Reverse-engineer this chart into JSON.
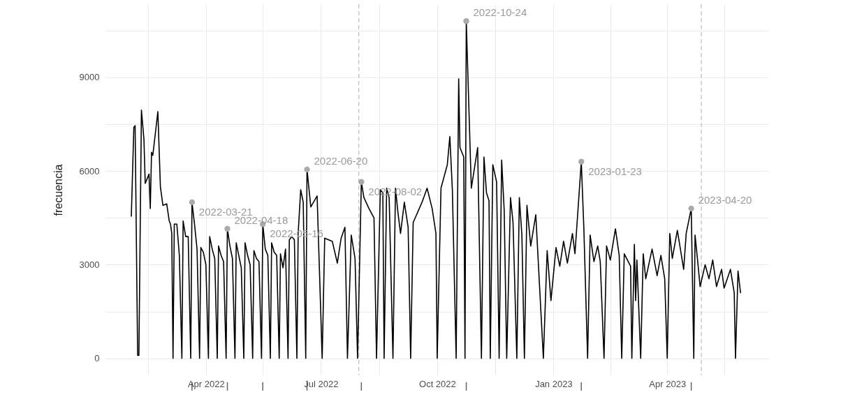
{
  "chart_data": {
    "type": "line",
    "ylabel": "frecuencia",
    "x": [
      "2022-02-01",
      "2022-02-03",
      "2022-02-04",
      "2022-02-06",
      "2022-02-07",
      "2022-02-09",
      "2022-02-11",
      "2022-02-12",
      "2022-02-14",
      "2022-02-15",
      "2022-02-16",
      "2022-02-17",
      "2022-02-18",
      "2022-02-22",
      "2022-02-24",
      "2022-02-26",
      "2022-03-01",
      "2022-03-03",
      "2022-03-04",
      "2022-03-05",
      "2022-03-06",
      "2022-03-07",
      "2022-03-09",
      "2022-03-11",
      "2022-03-13",
      "2022-03-14",
      "2022-03-16",
      "2022-03-18",
      "2022-03-20",
      "2022-03-21",
      "2022-03-23",
      "2022-03-25",
      "2022-03-27",
      "2022-03-28",
      "2022-03-30",
      "2022-04-01",
      "2022-04-03",
      "2022-04-04",
      "2022-04-06",
      "2022-04-08",
      "2022-04-10",
      "2022-04-11",
      "2022-04-13",
      "2022-04-15",
      "2022-04-17",
      "2022-04-18",
      "2022-04-20",
      "2022-04-22",
      "2022-04-24",
      "2022-04-25",
      "2022-04-27",
      "2022-04-29",
      "2022-05-01",
      "2022-05-02",
      "2022-05-04",
      "2022-05-06",
      "2022-05-08",
      "2022-05-09",
      "2022-05-11",
      "2022-05-13",
      "2022-05-15",
      "2022-05-16",
      "2022-05-18",
      "2022-05-20",
      "2022-05-22",
      "2022-05-23",
      "2022-05-25",
      "2022-05-27",
      "2022-05-29",
      "2022-05-30",
      "2022-06-01",
      "2022-06-03",
      "2022-06-05",
      "2022-06-06",
      "2022-06-08",
      "2022-06-10",
      "2022-06-12",
      "2022-06-13",
      "2022-06-15",
      "2022-06-17",
      "2022-06-19",
      "2022-06-20",
      "2022-06-23",
      "2022-06-28",
      "2022-07-02",
      "2022-07-04",
      "2022-07-10",
      "2022-07-14",
      "2022-07-17",
      "2022-07-20",
      "2022-07-22",
      "2022-07-25",
      "2022-07-28",
      "2022-07-30",
      "2022-08-02",
      "2022-08-04",
      "2022-08-08",
      "2022-08-12",
      "2022-08-14",
      "2022-08-17",
      "2022-08-19",
      "2022-08-20",
      "2022-08-22",
      "2022-08-24",
      "2022-08-27",
      "2022-08-29",
      "2022-08-31",
      "2022-09-02",
      "2022-09-05",
      "2022-09-08",
      "2022-09-10",
      "2022-09-12",
      "2022-09-19",
      "2022-09-23",
      "2022-09-27",
      "2022-09-30",
      "2022-10-01",
      "2022-10-04",
      "2022-10-09",
      "2022-10-11",
      "2022-10-13",
      "2022-10-16",
      "2022-10-18",
      "2022-10-19",
      "2022-10-22",
      "2022-10-23",
      "2022-10-24",
      "2022-10-28",
      "2022-11-02",
      "2022-11-05",
      "2022-11-07",
      "2022-11-09",
      "2022-11-11",
      "2022-11-12",
      "2022-11-14",
      "2022-11-17",
      "2022-11-19",
      "2022-11-21",
      "2022-11-23",
      "2022-11-25",
      "2022-11-28",
      "2022-11-30",
      "2022-12-03",
      "2022-12-05",
      "2022-12-07",
      "2022-12-09",
      "2022-12-11",
      "2022-12-14",
      "2022-12-18",
      "2022-12-24",
      "2022-12-27",
      "2022-12-30",
      "2023-01-03",
      "2023-01-06",
      "2023-01-09",
      "2023-01-12",
      "2023-01-16",
      "2023-01-18",
      "2023-01-23",
      "2023-01-25",
      "2023-01-28",
      "2023-01-30",
      "2023-02-02",
      "2023-02-05",
      "2023-02-07",
      "2023-02-10",
      "2023-02-12",
      "2023-02-15",
      "2023-02-19",
      "2023-02-22",
      "2023-02-24",
      "2023-02-26",
      "2023-03-03",
      "2023-03-04",
      "2023-03-06",
      "2023-03-07",
      "2023-03-08",
      "2023-03-11",
      "2023-03-13",
      "2023-03-15",
      "2023-03-20",
      "2023-03-24",
      "2023-03-27",
      "2023-03-30",
      "2023-04-01",
      "2023-04-03",
      "2023-04-05",
      "2023-04-09",
      "2023-04-14",
      "2023-04-16",
      "2023-04-20",
      "2023-04-22",
      "2023-04-23",
      "2023-04-25",
      "2023-04-27",
      "2023-05-01",
      "2023-05-04",
      "2023-05-07",
      "2023-05-10",
      "2023-05-14",
      "2023-05-16",
      "2023-05-21",
      "2023-05-24",
      "2023-05-25",
      "2023-05-27",
      "2023-05-29"
    ],
    "series": [
      {
        "color": "#000000",
        "values": [
          4550,
          7400,
          7450,
          100,
          100,
          7950,
          7000,
          5600,
          5800,
          5900,
          4800,
          6600,
          6500,
          7900,
          5500,
          4900,
          4950,
          4400,
          4300,
          4000,
          0,
          4300,
          4300,
          3300,
          0,
          4400,
          3900,
          3900,
          0,
          5000,
          4300,
          3500,
          0,
          3550,
          3400,
          3000,
          0,
          3900,
          3500,
          3200,
          0,
          3600,
          3300,
          3100,
          0,
          4150,
          3600,
          3200,
          0,
          3700,
          3300,
          2900,
          0,
          3700,
          3300,
          3000,
          0,
          3450,
          3200,
          3100,
          0,
          4300,
          3500,
          3300,
          0,
          3700,
          3400,
          3300,
          0,
          3350,
          2900,
          3500,
          0,
          3800,
          3900,
          3800,
          0,
          4000,
          5400,
          5000,
          0,
          6050,
          4850,
          5200,
          0,
          3850,
          3750,
          3050,
          3850,
          4200,
          0,
          3950,
          3200,
          0,
          5650,
          5150,
          4800,
          4500,
          0,
          5400,
          5300,
          0,
          5450,
          5150,
          0,
          5450,
          4650,
          4000,
          5000,
          4200,
          0,
          4350,
          5000,
          5450,
          4800,
          4000,
          0,
          5450,
          6200,
          7100,
          5400,
          0,
          8950,
          6750,
          6450,
          0,
          10800,
          5450,
          6750,
          0,
          6450,
          5300,
          5050,
          0,
          6200,
          5650,
          0,
          6350,
          4750,
          0,
          5150,
          4350,
          0,
          5150,
          3950,
          0,
          4900,
          3600,
          4600,
          0,
          3450,
          1850,
          3550,
          2950,
          3750,
          3050,
          4000,
          3350,
          6300,
          4200,
          0,
          3950,
          3100,
          3600,
          3100,
          0,
          3600,
          3150,
          4150,
          3300,
          0,
          3350,
          2950,
          0,
          3650,
          1850,
          3150,
          0,
          3350,
          2550,
          3500,
          2650,
          3300,
          2550,
          0,
          4000,
          3200,
          4100,
          2850,
          4000,
          4800,
          0,
          3950,
          3150,
          2300,
          3000,
          2550,
          3150,
          2300,
          2850,
          2250,
          2850,
          2100,
          0,
          2800,
          2100
        ]
      }
    ],
    "annotations": [
      {
        "text": "2022-03-21",
        "x": "2022-03-21",
        "y": 5000
      },
      {
        "text": "2022-04-18",
        "x": "2022-04-18",
        "y": 4150
      },
      {
        "text": "2022-05-16",
        "x": "2022-05-16",
        "y": 4300
      },
      {
        "text": "2022-06-20",
        "x": "2022-06-20",
        "y": 6050
      },
      {
        "text": "2022-08-02",
        "x": "2022-08-02",
        "y": 5650
      },
      {
        "text": "2022-10-24",
        "x": "2022-10-24",
        "y": 10800
      },
      {
        "text": "2023-01-23",
        "x": "2023-01-23",
        "y": 6300
      },
      {
        "text": "2023-04-20",
        "x": "2023-04-20",
        "y": 4800
      }
    ],
    "ref_lines": [
      {
        "axis": "x",
        "value": "2022-07-31",
        "color": "#bbbbbb",
        "line_style": "dashed"
      },
      {
        "axis": "x",
        "value": "2023-04-28",
        "color": "#bbbbbb",
        "line_style": "dashed"
      }
    ],
    "xlim": [
      "2022-01-11",
      "2023-06-20"
    ],
    "xticks": [
      {
        "value": "2022-02-14",
        "label": null
      },
      {
        "value": "2022-04-01",
        "label": "Apr 2022"
      },
      {
        "value": "2022-05-16",
        "label": null
      },
      {
        "value": "2022-07-01",
        "label": "Jul 2022"
      },
      {
        "value": "2022-08-16",
        "label": null
      },
      {
        "value": "2022-10-01",
        "label": "Oct 2022"
      },
      {
        "value": "2022-11-16",
        "label": null
      },
      {
        "value": "2023-01-01",
        "label": "Jan 2023"
      },
      {
        "value": "2023-02-15",
        "label": null
      },
      {
        "value": "2023-04-01",
        "label": "Apr 2023"
      },
      {
        "value": "2023-05-16",
        "label": null
      }
    ],
    "ylim": [
      -540,
      11340
    ],
    "yticks": [
      0,
      {
        "value": 1500,
        "label": null
      },
      3000,
      {
        "value": 4500,
        "label": null
      },
      6000,
      {
        "value": 7500,
        "label": null
      },
      9000,
      {
        "value": 10500,
        "label": null
      }
    ],
    "grid": true,
    "line_style": "solid"
  }
}
